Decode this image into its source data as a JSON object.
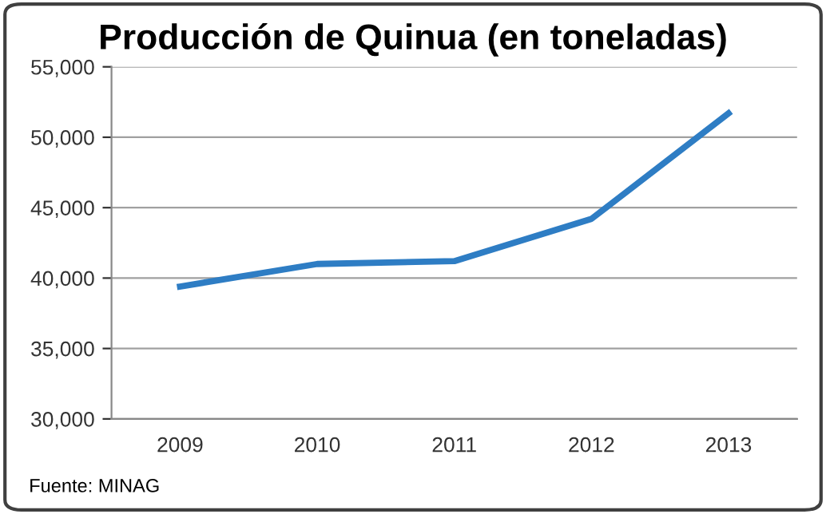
{
  "chart_data": {
    "type": "line",
    "title": "Producción de Quinua (en toneladas)",
    "categories": [
      "2009",
      "2010",
      "2011",
      "2012",
      "2013"
    ],
    "series": [
      {
        "color": "#2e7dc4",
        "values": [
          39400,
          41000,
          41200,
          44200,
          51700
        ]
      }
    ],
    "ylim": [
      30000,
      55000
    ],
    "yticks": [
      {
        "value": 30000,
        "label": "30,000"
      },
      {
        "value": 35000,
        "label": "35,000"
      },
      {
        "value": 40000,
        "label": "40,000"
      },
      {
        "value": 45000,
        "label": "45,000"
      },
      {
        "value": 50000,
        "label": "50,000"
      },
      {
        "value": 55000,
        "label": "55,000"
      }
    ],
    "grid": "y",
    "marker": "none",
    "line_style": "solid",
    "annotations": [
      "Fuente: MINAG"
    ]
  }
}
